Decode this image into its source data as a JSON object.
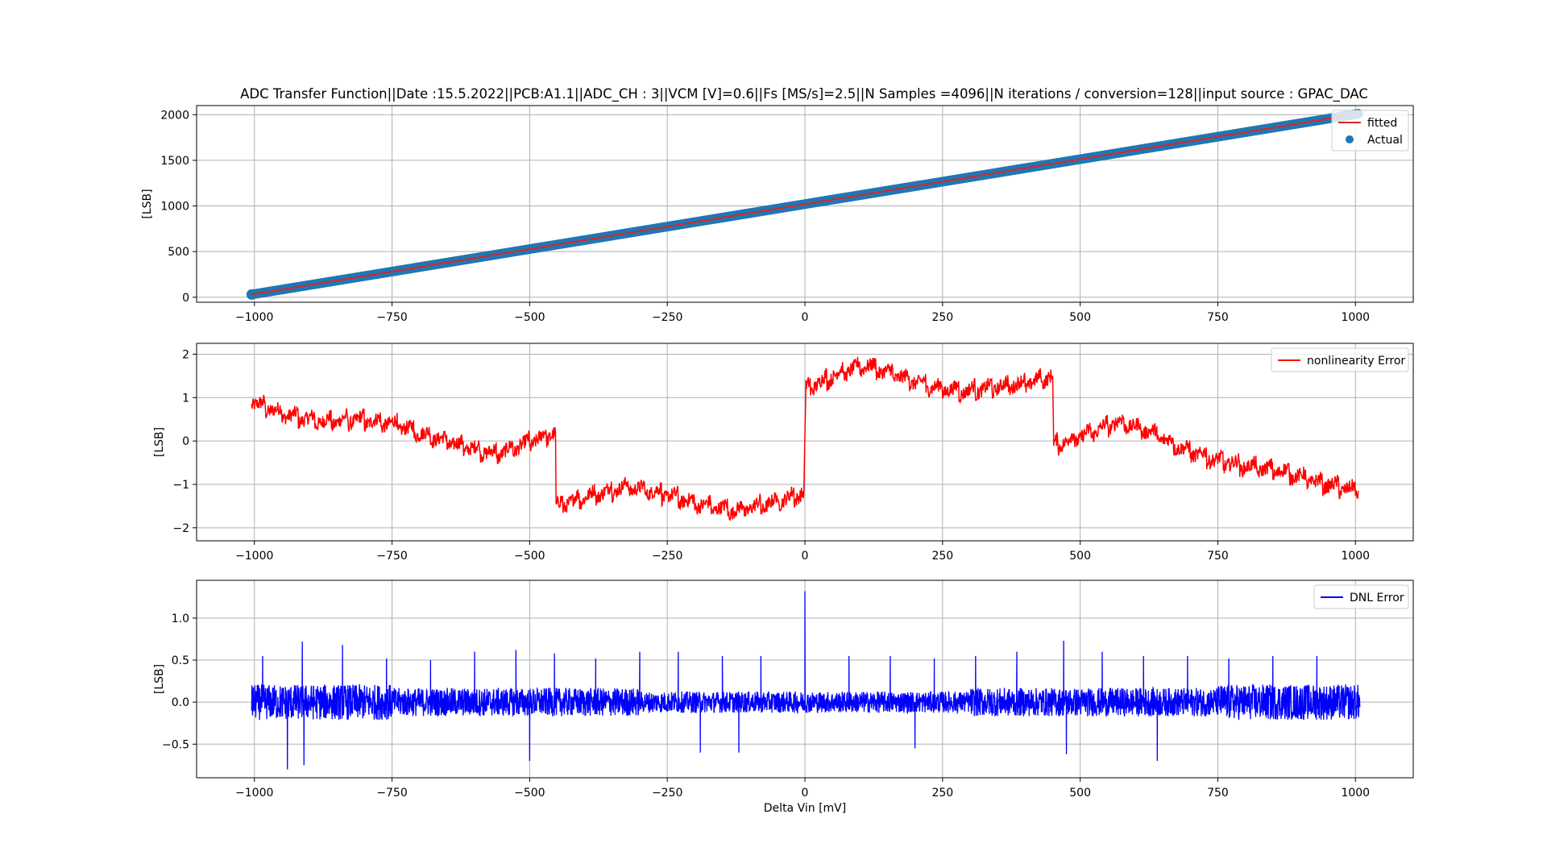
{
  "chart_data": [
    {
      "type": "line",
      "title": "ADC Transfer Function||Date :15.5.2022||PCB:A1.1||ADC_CH : 3||VCM [V]=0.6||Fs [MS/s]=2.5||N Samples =4096||N iterations / conversion=128||input source : GPAC_DAC",
      "xlabel": "",
      "ylabel": "[LSB]",
      "xlim": [
        -1105,
        1105
      ],
      "ylim": [
        -55,
        2100
      ],
      "xticks": [
        -1000,
        -750,
        -500,
        -250,
        0,
        250,
        500,
        750,
        1000
      ],
      "yticks": [
        0,
        500,
        1000,
        1500,
        2000
      ],
      "grid": true,
      "legend_position": "top-right",
      "series": [
        {
          "name": "fitted",
          "kind": "line",
          "color": "#d62728",
          "x": [
            -1005,
            1005
          ],
          "y": [
            30,
            2010
          ]
        },
        {
          "name": "Actual",
          "kind": "scatter",
          "color": "#1f77b4",
          "x": [
            -1005,
            1005
          ],
          "y": [
            30,
            2010
          ]
        }
      ]
    },
    {
      "type": "line",
      "title": "",
      "xlabel": "",
      "ylabel": "[LSB]",
      "xlim": [
        -1105,
        1105
      ],
      "ylim": [
        -2.3,
        2.25
      ],
      "xticks": [
        -1000,
        -750,
        -500,
        -250,
        0,
        250,
        500,
        750,
        1000
      ],
      "yticks": [
        -2,
        -1,
        0,
        1,
        2
      ],
      "grid": true,
      "legend_position": "top-right",
      "series": [
        {
          "name": "nonlinearity Error",
          "color": "#ff0000",
          "x": [
            -1005,
            -940,
            -875,
            -810,
            -750,
            -690,
            -625,
            -560,
            -505,
            -453,
            -452,
            -390,
            -325,
            -260,
            -195,
            -130,
            -65,
            -2,
            2,
            60,
            110,
            170,
            230,
            290,
            350,
            410,
            450,
            452,
            510,
            570,
            630,
            690,
            750,
            810,
            870,
            930,
            1005
          ],
          "y": [
            0.9,
            0.6,
            0.45,
            0.5,
            0.4,
            0.15,
            -0.1,
            -0.3,
            -0.05,
            0.2,
            -1.5,
            -1.25,
            -1.05,
            -1.2,
            -1.45,
            -1.6,
            -1.45,
            -1.2,
            1.2,
            1.55,
            1.75,
            1.5,
            1.25,
            1.15,
            1.25,
            1.35,
            1.5,
            -0.1,
            0.15,
            0.45,
            0.2,
            -0.2,
            -0.45,
            -0.6,
            -0.7,
            -0.95,
            -1.15
          ]
        }
      ]
    },
    {
      "type": "line",
      "title": "",
      "xlabel": "Delta Vin [mV]",
      "ylabel": "[LSB]",
      "xlim": [
        -1105,
        1105
      ],
      "ylim": [
        -0.9,
        1.45
      ],
      "xticks": [
        -1000,
        -750,
        -500,
        -250,
        0,
        250,
        500,
        750,
        1000
      ],
      "yticks": [
        -0.5,
        0.0,
        0.5,
        1.0
      ],
      "grid": true,
      "legend_position": "top-right",
      "series": [
        {
          "name": "DNL Error",
          "color": "#0000ff",
          "x_range": [
            -1005,
            1008
          ],
          "noise_amplitude": 0.17,
          "spikes": [
            {
              "x": 0,
              "y": 1.32
            },
            {
              "x": -985,
              "y": 0.55
            },
            {
              "x": -913,
              "y": 0.72
            },
            {
              "x": -840,
              "y": 0.68
            },
            {
              "x": -760,
              "y": 0.52
            },
            {
              "x": -680,
              "y": 0.5
            },
            {
              "x": -600,
              "y": 0.6
            },
            {
              "x": -525,
              "y": 0.62
            },
            {
              "x": -455,
              "y": 0.58
            },
            {
              "x": -380,
              "y": 0.52
            },
            {
              "x": -300,
              "y": 0.6
            },
            {
              "x": -230,
              "y": 0.6
            },
            {
              "x": -150,
              "y": 0.55
            },
            {
              "x": -80,
              "y": 0.55
            },
            {
              "x": 80,
              "y": 0.55
            },
            {
              "x": 155,
              "y": 0.55
            },
            {
              "x": 235,
              "y": 0.52
            },
            {
              "x": 310,
              "y": 0.55
            },
            {
              "x": 385,
              "y": 0.6
            },
            {
              "x": 470,
              "y": 0.73
            },
            {
              "x": 540,
              "y": 0.6
            },
            {
              "x": 615,
              "y": 0.55
            },
            {
              "x": 695,
              "y": 0.55
            },
            {
              "x": 770,
              "y": 0.52
            },
            {
              "x": 850,
              "y": 0.55
            },
            {
              "x": 930,
              "y": 0.55
            },
            {
              "x": -940,
              "y": -0.8
            },
            {
              "x": -910,
              "y": -0.75
            },
            {
              "x": -500,
              "y": -0.7
            },
            {
              "x": 475,
              "y": -0.62
            },
            {
              "x": 640,
              "y": -0.7
            },
            {
              "x": -190,
              "y": -0.6
            },
            {
              "x": -120,
              "y": -0.6
            },
            {
              "x": 200,
              "y": -0.55
            }
          ]
        }
      ]
    }
  ]
}
